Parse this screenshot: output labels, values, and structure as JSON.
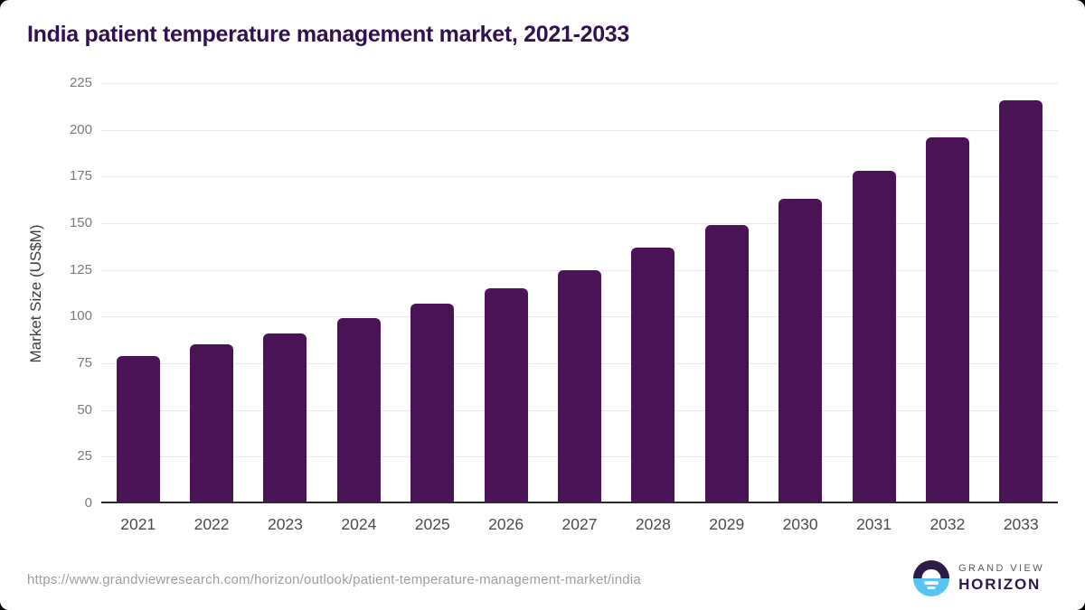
{
  "chart_data": {
    "type": "bar",
    "title": "India patient temperature management market, 2021-2033",
    "categories": [
      "2021",
      "2022",
      "2023",
      "2024",
      "2025",
      "2026",
      "2027",
      "2028",
      "2029",
      "2030",
      "2031",
      "2032",
      "2033"
    ],
    "values": [
      78,
      84,
      90,
      98,
      106,
      114,
      124,
      136,
      148,
      162,
      177,
      195,
      215
    ],
    "xlabel": "",
    "ylabel": "Market Size (US$M)",
    "ylim": [
      0,
      225
    ],
    "yticks": [
      0,
      25,
      50,
      75,
      100,
      125,
      150,
      175,
      200,
      225
    ],
    "grid": "horizontal",
    "legend": "none",
    "bar_color": "#4a1356"
  },
  "footer": {
    "source_url": "https://www.grandviewresearch.com/horizon/outlook/patient-temperature-management-market/india",
    "logo": {
      "line1": "GRAND VIEW",
      "line2": "HORIZON"
    }
  },
  "colors": {
    "title_text": "#33104f",
    "bar": "#4a1356",
    "axis_line": "#2b2b2b",
    "gridline": "#e9e9e9",
    "y_tick_text": "#7a7a7a",
    "x_tick_text": "#4c4c4c",
    "url_text": "#9e9e9e",
    "logo_dark": "#2e1a47",
    "logo_blue": "#56c5f2"
  }
}
